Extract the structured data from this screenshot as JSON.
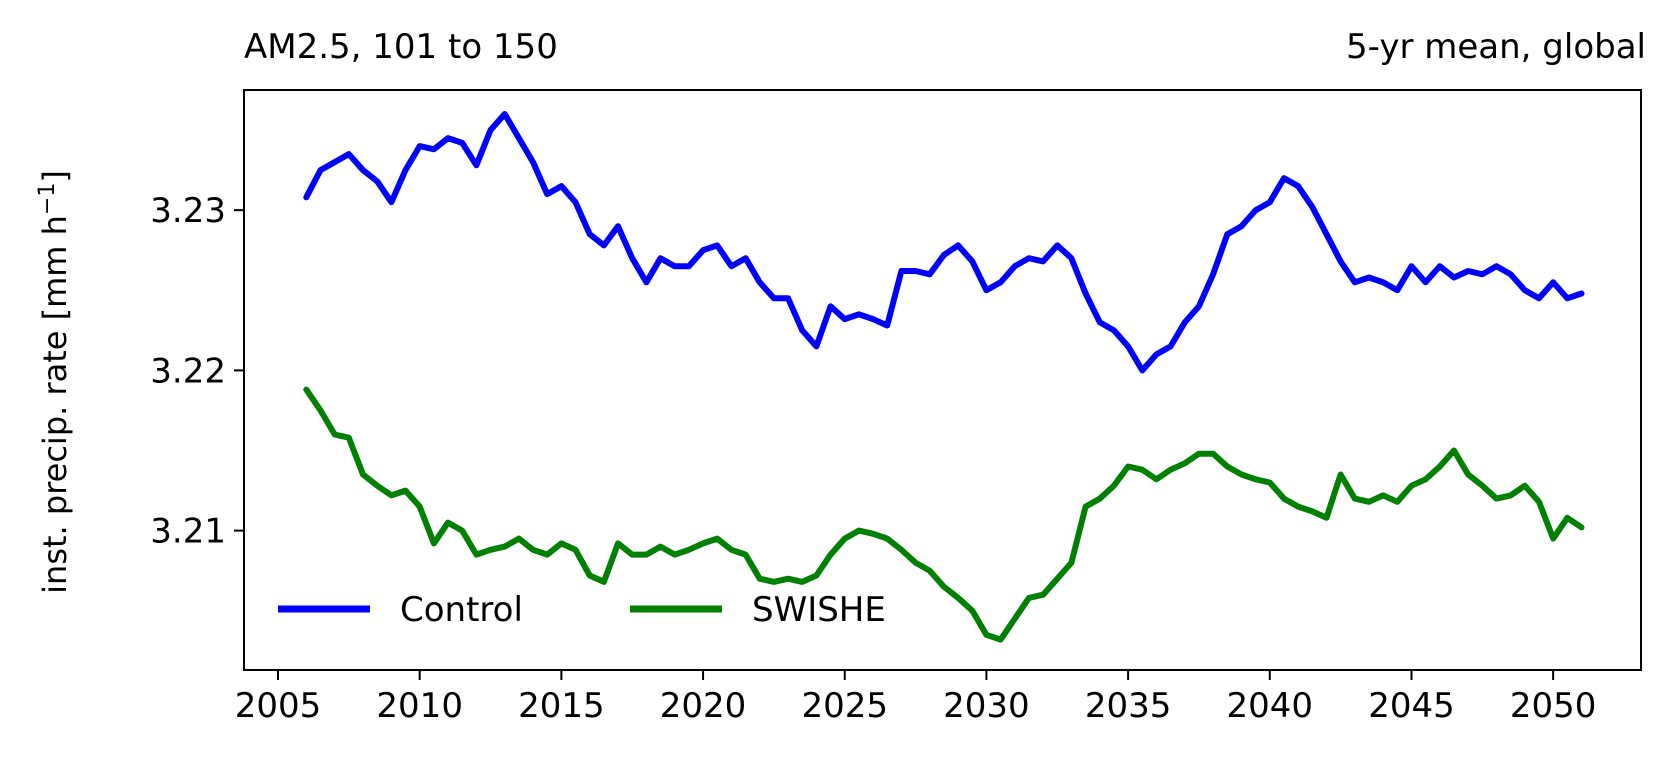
{
  "chart_data": {
    "type": "line",
    "title_left": "AM2.5, 101 to 150",
    "title_right": "5-yr mean, global",
    "xlabel": "",
    "ylabel": "inst. precip. rate [mm h",
    "ylabel_sup": "−1",
    "ylabel_end": "]",
    "xlim": [
      2003.8,
      2053.1
    ],
    "ylim": [
      3.2013,
      3.2375
    ],
    "xticks": [
      2005,
      2010,
      2015,
      2020,
      2025,
      2030,
      2035,
      2040,
      2045,
      2050
    ],
    "xtick_labels": [
      "2005",
      "2010",
      "2015",
      "2020",
      "2025",
      "2030",
      "2035",
      "2040",
      "2045",
      "2050"
    ],
    "yticks": [
      3.21,
      3.22,
      3.23
    ],
    "ytick_labels": [
      "3.21",
      "3.22",
      "3.23"
    ],
    "grid": false,
    "legend_position": "bottom-left",
    "series": [
      {
        "name": "Control",
        "color": "#0000ff",
        "x": [
          2006.0,
          2006.5,
          2007.0,
          2007.5,
          2008.0,
          2008.5,
          2009.0,
          2009.5,
          2010.0,
          2010.5,
          2011.0,
          2011.5,
          2012.0,
          2012.5,
          2013.0,
          2013.5,
          2014.0,
          2014.5,
          2015.0,
          2015.5,
          2016.0,
          2016.5,
          2017.0,
          2017.5,
          2018.0,
          2018.5,
          2019.0,
          2019.5,
          2020.0,
          2020.5,
          2021.0,
          2021.5,
          2022.0,
          2022.5,
          2023.0,
          2023.5,
          2024.0,
          2024.5,
          2025.0,
          2025.5,
          2026.0,
          2026.5,
          2027.0,
          2027.5,
          2028.0,
          2028.5,
          2029.0,
          2029.5,
          2030.0,
          2030.5,
          2031.0,
          2031.5,
          2032.0,
          2032.5,
          2033.0,
          2033.5,
          2034.0,
          2034.5,
          2035.0,
          2035.5,
          2036.0,
          2036.5,
          2037.0,
          2037.5,
          2038.0,
          2038.5,
          2039.0,
          2039.5,
          2040.0,
          2040.5,
          2041.0,
          2041.5,
          2042.0,
          2042.5,
          2043.0,
          2043.5,
          2044.0,
          2044.5,
          2045.0,
          2045.5,
          2046.0,
          2046.5,
          2047.0,
          2047.5,
          2048.0,
          2048.5,
          2049.0,
          2049.5,
          2050.0,
          2050.5,
          2051.0
        ],
        "y": [
          3.2308,
          3.2325,
          3.233,
          3.2335,
          3.2325,
          3.2318,
          3.2305,
          3.2325,
          3.234,
          3.2338,
          3.2345,
          3.2342,
          3.2328,
          3.235,
          3.236,
          3.2345,
          3.233,
          3.231,
          3.2315,
          3.2305,
          3.2285,
          3.2278,
          3.229,
          3.227,
          3.2255,
          3.227,
          3.2265,
          3.2265,
          3.2275,
          3.2278,
          3.2265,
          3.227,
          3.2255,
          3.2245,
          3.2245,
          3.2225,
          3.2215,
          3.224,
          3.2232,
          3.2235,
          3.2232,
          3.2228,
          3.2262,
          3.2262,
          3.226,
          3.2272,
          3.2278,
          3.2268,
          3.225,
          3.2255,
          3.2265,
          3.227,
          3.2268,
          3.2278,
          3.227,
          3.2248,
          3.223,
          3.2225,
          3.2215,
          3.22,
          3.221,
          3.2215,
          3.223,
          3.224,
          3.226,
          3.2285,
          3.229,
          3.23,
          3.2305,
          3.232,
          3.2315,
          3.2302,
          3.2285,
          3.2268,
          3.2255,
          3.2258,
          3.2255,
          3.225,
          3.2265,
          3.2255,
          3.2265,
          3.2258,
          3.2262,
          3.226,
          3.2265,
          3.226,
          3.225,
          3.2245,
          3.2255,
          3.2245,
          3.2248
        ]
      },
      {
        "name": "SWISHE",
        "color": "#008000",
        "x": [
          2006.0,
          2006.5,
          2007.0,
          2007.5,
          2008.0,
          2008.5,
          2009.0,
          2009.5,
          2010.0,
          2010.5,
          2011.0,
          2011.5,
          2012.0,
          2012.5,
          2013.0,
          2013.5,
          2014.0,
          2014.5,
          2015.0,
          2015.5,
          2016.0,
          2016.5,
          2017.0,
          2017.5,
          2018.0,
          2018.5,
          2019.0,
          2019.5,
          2020.0,
          2020.5,
          2021.0,
          2021.5,
          2022.0,
          2022.5,
          2023.0,
          2023.5,
          2024.0,
          2024.5,
          2025.0,
          2025.5,
          2026.0,
          2026.5,
          2027.0,
          2027.5,
          2028.0,
          2028.5,
          2029.0,
          2029.5,
          2030.0,
          2030.5,
          2031.0,
          2031.5,
          2032.0,
          2032.5,
          2033.0,
          2033.5,
          2034.0,
          2034.5,
          2035.0,
          2035.5,
          2036.0,
          2036.5,
          2037.0,
          2037.5,
          2038.0,
          2038.5,
          2039.0,
          2039.5,
          2040.0,
          2040.5,
          2041.0,
          2041.5,
          2042.0,
          2042.5,
          2043.0,
          2043.5,
          2044.0,
          2044.5,
          2045.0,
          2045.5,
          2046.0,
          2046.5,
          2047.0,
          2047.5,
          2048.0,
          2048.5,
          2049.0,
          2049.5,
          2050.0,
          2050.5,
          2051.0
        ],
        "y": [
          3.2188,
          3.2175,
          3.216,
          3.2158,
          3.2135,
          3.2128,
          3.2122,
          3.2125,
          3.2115,
          3.2092,
          3.2105,
          3.21,
          3.2085,
          3.2088,
          3.209,
          3.2095,
          3.2088,
          3.2085,
          3.2092,
          3.2088,
          3.2072,
          3.2068,
          3.2092,
          3.2085,
          3.2085,
          3.209,
          3.2085,
          3.2088,
          3.2092,
          3.2095,
          3.2088,
          3.2085,
          3.207,
          3.2068,
          3.207,
          3.2068,
          3.2072,
          3.2085,
          3.2095,
          3.21,
          3.2098,
          3.2095,
          3.2088,
          3.208,
          3.2075,
          3.2065,
          3.2058,
          3.205,
          3.2035,
          3.2032,
          3.2045,
          3.2058,
          3.206,
          3.207,
          3.208,
          3.2115,
          3.212,
          3.2128,
          3.214,
          3.2138,
          3.2132,
          3.2138,
          3.2142,
          3.2148,
          3.2148,
          3.214,
          3.2135,
          3.2132,
          3.213,
          3.212,
          3.2115,
          3.2112,
          3.2108,
          3.2135,
          3.212,
          3.2118,
          3.2122,
          3.2118,
          3.2128,
          3.2132,
          3.214,
          3.215,
          3.2135,
          3.2128,
          3.212,
          3.2122,
          3.2128,
          3.2118,
          3.2095,
          3.2108,
          3.2102
        ]
      }
    ]
  }
}
